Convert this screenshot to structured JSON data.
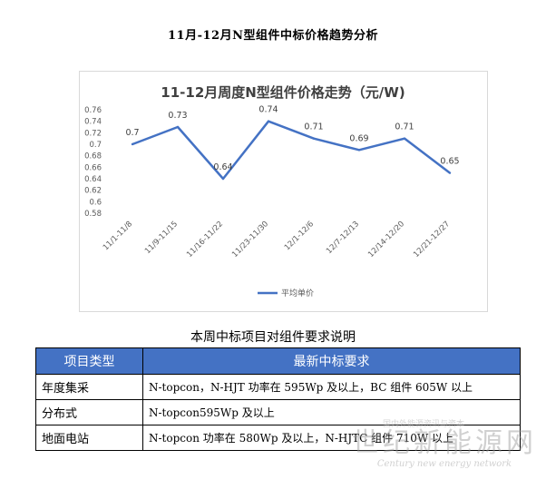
{
  "document_title": "11月-12月N型组件中标价格趋势分析",
  "chart_data": {
    "type": "line",
    "title": "11-12月周度N型组件价格走势（元/W)",
    "categories": [
      "11/1-11/8",
      "11/9-11/15",
      "11/16-11/22",
      "11/23-11/30",
      "12/1-12/6",
      "12/7-12/13",
      "12/14-12/20",
      "12/21-12/27"
    ],
    "series": [
      {
        "name": "平均单价",
        "values": [
          0.7,
          0.73,
          0.64,
          0.74,
          0.71,
          0.69,
          0.71,
          0.65
        ],
        "color": "#4472c4"
      }
    ],
    "data_labels": [
      "0.7",
      "0.73",
      "0.64",
      "0.74",
      "0.71",
      "0.69",
      "0.71",
      "0.65"
    ],
    "ylim": [
      0.58,
      0.76
    ],
    "yticks": [
      "0.76",
      "0.74",
      "0.72",
      "0.7",
      "0.68",
      "0.66",
      "0.64",
      "0.62",
      "0.6",
      "0.58"
    ],
    "grid": false,
    "legend_position": "bottom"
  },
  "section_caption": "本周中标项目对组件要求说明",
  "table": {
    "headers": [
      "项目类型",
      "最新中标要求"
    ],
    "rows": [
      [
        "年度集采",
        "N-topcon，N-HJT 功率在 595Wp 及以上，BC 组件 605W 以上"
      ],
      [
        "分布式",
        "N-topcon595Wp 及以上"
      ],
      [
        "地面电站",
        "N-topcon 功率在 580Wp 及以上，N-HJTC 组件 710W 以上"
      ]
    ]
  },
  "watermark": {
    "main": "世纪新能源网",
    "sub": "Century new energy network",
    "top": "国内外能源资讯与资本"
  }
}
